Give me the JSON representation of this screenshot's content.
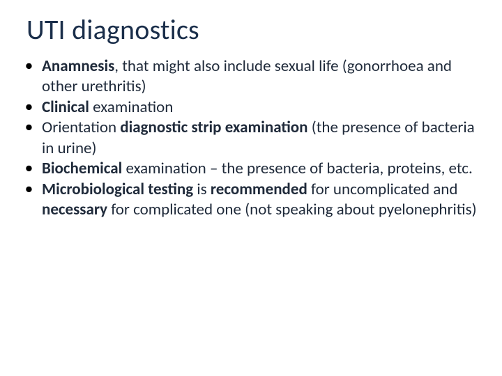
{
  "slide": {
    "title": "UTI diagnostics",
    "title_color": "#1a2e4a",
    "title_fontsize": 40,
    "body_fontsize": 23,
    "body_color": "#1f2a3a",
    "bullet_color": "#000000",
    "background_color": "#ffffff",
    "bullets": [
      {
        "segments": [
          {
            "text": "Anamnesis",
            "bold": true
          },
          {
            "text": ", that might also include sexual life (gonorrhoea and other urethritis)",
            "bold": false
          }
        ]
      },
      {
        "segments": [
          {
            "text": "Clinical ",
            "bold": true
          },
          {
            "text": "examination",
            "bold": false
          }
        ]
      },
      {
        "segments": [
          {
            "text": "Orientation ",
            "bold": false
          },
          {
            "text": "diagnostic strip examination",
            "bold": true
          },
          {
            "text": "  (the presence of bacteria in urine)",
            "bold": false
          }
        ]
      },
      {
        "segments": [
          {
            "text": "Biochemical ",
            "bold": true
          },
          {
            "text": "examination – the presence of bacteria, proteins, etc.",
            "bold": false
          }
        ]
      },
      {
        "segments": [
          {
            "text": "Microbiological testing ",
            "bold": true
          },
          {
            "text": "is ",
            "bold": false
          },
          {
            "text": "recommended ",
            "bold": true
          },
          {
            "text": "for uncomplicated and ",
            "bold": false
          },
          {
            "text": "necessary ",
            "bold": true
          },
          {
            "text": "for complicated one (not speaking about pyelonephritis)",
            "bold": false
          }
        ]
      }
    ]
  }
}
